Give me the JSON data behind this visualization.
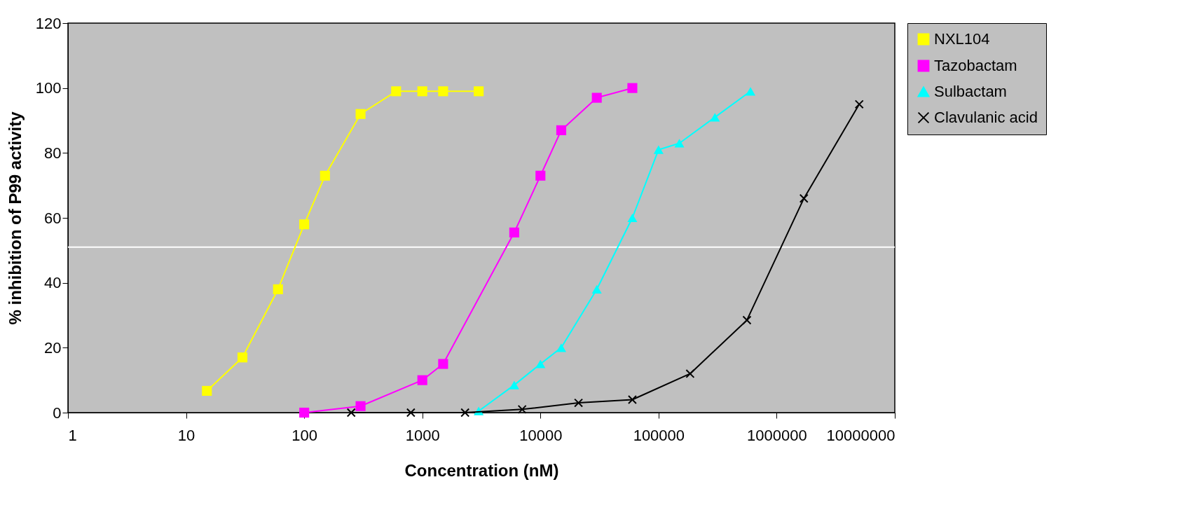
{
  "chart_data": {
    "type": "line",
    "xlabel": "Concentration (nM)",
    "ylabel": "% inhibition of P99 activity",
    "log": "x",
    "xlim": [
      1,
      10000000
    ],
    "xticks": [
      1,
      10,
      100,
      1000,
      10000,
      100000,
      1000000,
      10000000
    ],
    "ylim": [
      0,
      120
    ],
    "yticks": [
      0,
      20,
      40,
      60,
      80,
      100,
      120
    ],
    "legend": "right",
    "grid": false,
    "ref_lines": [
      {
        "axis": "y",
        "value": 51,
        "color": "#ffffff"
      }
    ],
    "series": [
      {
        "name": "NXL104",
        "color": "#ffff00",
        "marker": "square",
        "x": [
          15,
          30,
          60,
          100,
          150,
          300,
          600,
          1000,
          1500,
          3000
        ],
        "values": [
          6.7,
          17,
          38,
          58,
          73,
          92,
          99,
          99,
          99,
          99
        ]
      },
      {
        "name": "Tazobactam",
        "color": "#ff00ff",
        "marker": "square",
        "x": [
          100,
          300,
          1000,
          1500,
          6000,
          10000,
          15000,
          30000,
          60000
        ],
        "values": [
          0,
          2,
          10,
          15,
          55.5,
          73,
          87,
          97,
          100
        ]
      },
      {
        "name": "Sulbactam",
        "color": "#00ffff",
        "marker": "triangle",
        "x": [
          3000,
          6000,
          10000,
          15000,
          30000,
          60000,
          100000,
          150000,
          300000,
          600000
        ],
        "values": [
          0.5,
          8.5,
          15,
          20,
          38,
          60,
          81,
          83,
          91,
          99
        ]
      },
      {
        "name": "Clavulanic acid",
        "color": "#000000",
        "marker": "cross",
        "x": [
          250,
          800,
          2300,
          7000,
          21000,
          60000,
          185000,
          560000,
          1700000,
          5000000
        ],
        "values": [
          0,
          0,
          0,
          1,
          3,
          4,
          12,
          28.5,
          66,
          95
        ]
      }
    ]
  }
}
